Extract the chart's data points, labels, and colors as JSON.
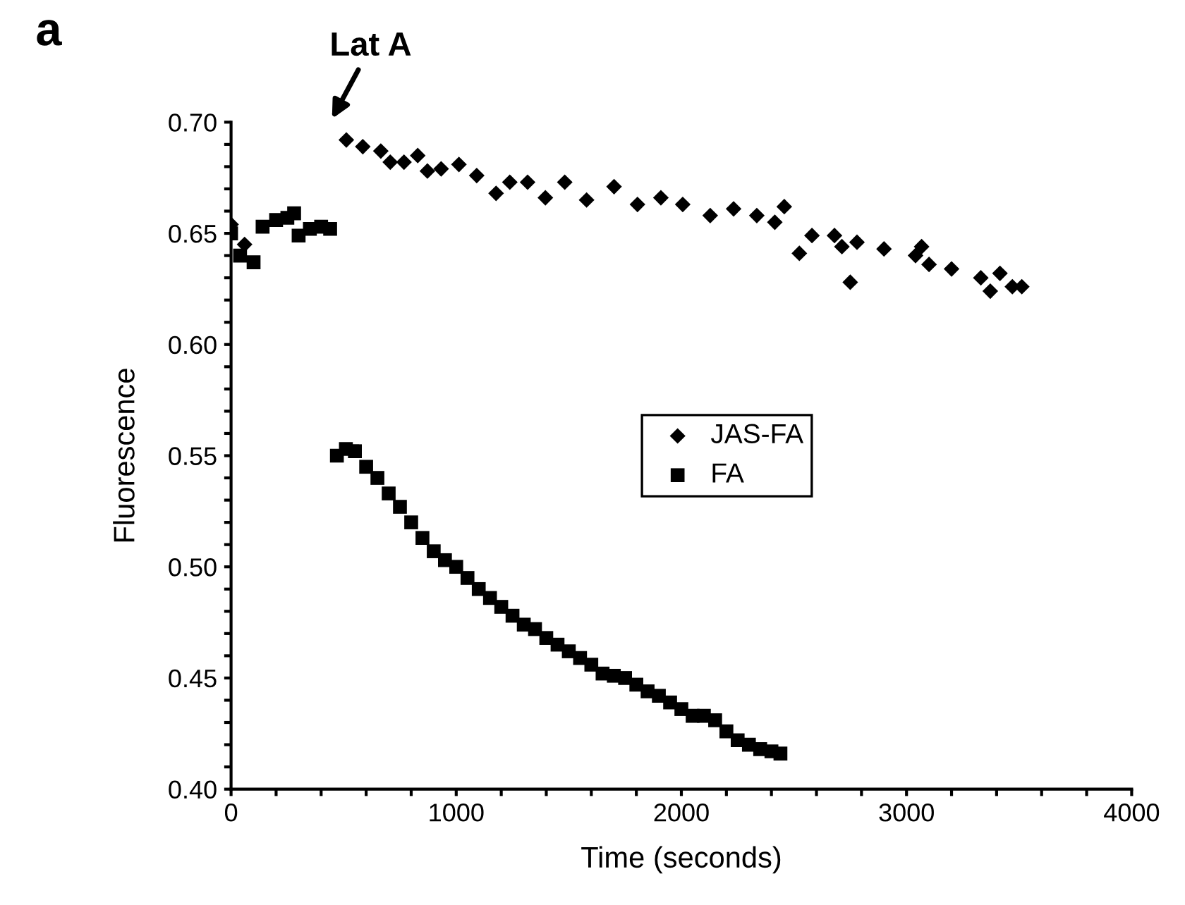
{
  "chart_data": {
    "type": "scatter",
    "xlabel": "Time (seconds)",
    "ylabel": "Fluorescence",
    "xlim": [
      0,
      4000
    ],
    "ylim": [
      0.4,
      0.7
    ],
    "xticks": [
      0,
      {
        "value": 200,
        "label": null
      },
      {
        "value": 400,
        "label": null
      },
      {
        "value": 600,
        "label": null
      },
      {
        "value": 800,
        "label": null
      },
      1000,
      {
        "value": 1200,
        "label": null
      },
      {
        "value": 1400,
        "label": null
      },
      {
        "value": 1600,
        "label": null
      },
      {
        "value": 1800,
        "label": null
      },
      2000,
      {
        "value": 2200,
        "label": null
      },
      {
        "value": 2400,
        "label": null
      },
      {
        "value": 2600,
        "label": null
      },
      {
        "value": 2800,
        "label": null
      },
      3000,
      {
        "value": 3200,
        "label": null
      },
      {
        "value": 3400,
        "label": null
      },
      {
        "value": 3600,
        "label": null
      },
      {
        "value": 3800,
        "label": null
      },
      4000
    ],
    "yticks": [
      {
        "value": 0.4,
        "label": "0.40"
      },
      {
        "value": 0.41,
        "label": null
      },
      {
        "value": 0.42,
        "label": null
      },
      {
        "value": 0.43,
        "label": null
      },
      {
        "value": 0.44,
        "label": null
      },
      {
        "value": 0.45,
        "label": "0.45"
      },
      {
        "value": 0.46,
        "label": null
      },
      {
        "value": 0.47,
        "label": null
      },
      {
        "value": 0.48,
        "label": null
      },
      {
        "value": 0.49,
        "label": null
      },
      {
        "value": 0.5,
        "label": "0.50"
      },
      {
        "value": 0.51,
        "label": null
      },
      {
        "value": 0.52,
        "label": null
      },
      {
        "value": 0.53,
        "label": null
      },
      {
        "value": 0.54,
        "label": null
      },
      {
        "value": 0.55,
        "label": "0.55"
      },
      {
        "value": 0.56,
        "label": null
      },
      {
        "value": 0.57,
        "label": null
      },
      {
        "value": 0.58,
        "label": null
      },
      {
        "value": 0.59,
        "label": null
      },
      {
        "value": 0.6,
        "label": "0.60"
      },
      {
        "value": 0.61,
        "label": null
      },
      {
        "value": 0.62,
        "label": null
      },
      {
        "value": 0.63,
        "label": null
      },
      {
        "value": 0.64,
        "label": null
      },
      {
        "value": 0.65,
        "label": "0.65"
      },
      {
        "value": 0.66,
        "label": null
      },
      {
        "value": 0.67,
        "label": null
      },
      {
        "value": 0.68,
        "label": null
      },
      {
        "value": 0.69,
        "label": null
      },
      {
        "value": 0.7,
        "label": "0.70"
      }
    ],
    "grid": false,
    "legend": "right",
    "annotations": [
      "a",
      "Lat A"
    ],
    "series": [
      {
        "name": "JAS-FA",
        "color": "#000000",
        "marker": "diamond",
        "x": [
          0,
          60,
          150,
          250,
          350,
          512,
          585,
          665,
          707,
          768,
          829,
          872,
          933,
          1012,
          1091,
          1177,
          1238,
          1317,
          1396,
          1482,
          1579,
          1701,
          1805,
          1909,
          2006,
          2128,
          2232,
          2335,
          2415,
          2457,
          2524,
          2580,
          2680,
          2713,
          2750,
          2780,
          2900,
          3040,
          3067,
          3100,
          3200,
          3330,
          3372,
          3415,
          3470,
          3512
        ],
        "values": [
          0.654,
          0.645,
          null,
          null,
          null,
          0.692,
          0.689,
          0.687,
          0.682,
          0.682,
          0.685,
          0.678,
          0.679,
          0.681,
          0.676,
          0.668,
          0.673,
          0.673,
          0.666,
          0.673,
          0.665,
          0.671,
          0.663,
          0.666,
          0.663,
          0.658,
          0.661,
          0.658,
          0.655,
          0.662,
          0.641,
          0.649,
          0.649,
          0.644,
          0.628,
          0.646,
          0.643,
          0.64,
          0.644,
          0.636,
          0.634,
          0.63,
          0.624,
          0.632,
          0.626,
          0.626
        ]
      },
      {
        "name": "FA",
        "color": "#000000",
        "marker": "square",
        "x": [
          0,
          40,
          100,
          140,
          200,
          250,
          280,
          300,
          350,
          400,
          440,
          470,
          510,
          550,
          600,
          650,
          700,
          750,
          800,
          850,
          900,
          950,
          1000,
          1050,
          1100,
          1150,
          1200,
          1250,
          1300,
          1350,
          1400,
          1450,
          1500,
          1550,
          1600,
          1650,
          1700,
          1750,
          1800,
          1850,
          1900,
          1950,
          2000,
          2050,
          2100,
          2150,
          2200,
          2250,
          2300,
          2350,
          2400,
          2440
        ],
        "values": [
          0.65,
          0.64,
          0.637,
          0.653,
          0.656,
          0.657,
          0.659,
          0.649,
          0.652,
          0.653,
          0.652,
          0.55,
          0.553,
          0.552,
          0.545,
          0.54,
          0.533,
          0.527,
          0.52,
          0.513,
          0.507,
          0.503,
          0.5,
          0.495,
          0.49,
          0.486,
          0.482,
          0.478,
          0.474,
          0.472,
          0.468,
          0.465,
          0.462,
          0.459,
          0.456,
          0.452,
          0.451,
          0.45,
          0.447,
          0.444,
          0.442,
          0.439,
          0.436,
          0.433,
          0.433,
          0.431,
          0.426,
          0.422,
          0.42,
          0.418,
          0.417,
          0.416
        ]
      }
    ]
  }
}
